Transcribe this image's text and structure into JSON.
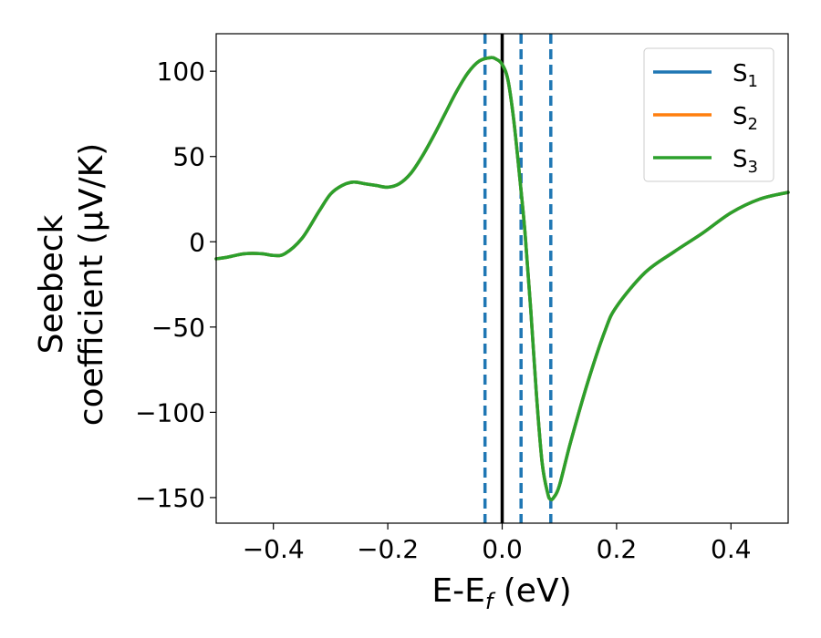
{
  "chart_data": {
    "type": "line",
    "xlabel": "E-E",
    "xlabel_sub": "f",
    "xlabel_unit": " (eV)",
    "ylabel_line1": "Seebeck",
    "ylabel_line2": "coefficient  (μV/K)",
    "xlim": [
      -0.5,
      0.5
    ],
    "ylim": [
      -165,
      122
    ],
    "x_ticks": [
      -0.4,
      -0.2,
      0.0,
      0.2,
      0.4
    ],
    "x_tick_labels": [
      "−0.4",
      "−0.2",
      "0.0",
      "0.2",
      "0.4"
    ],
    "y_ticks": [
      100,
      50,
      0,
      -50,
      -100,
      -150
    ],
    "y_tick_labels": [
      "100",
      "50",
      "0",
      "−50",
      "−100",
      "−150"
    ],
    "grid": false,
    "legend_position": "top-right",
    "x": [
      -0.5,
      -0.48,
      -0.45,
      -0.42,
      -0.4,
      -0.38,
      -0.35,
      -0.32,
      -0.3,
      -0.28,
      -0.26,
      -0.24,
      -0.22,
      -0.2,
      -0.18,
      -0.16,
      -0.14,
      -0.12,
      -0.1,
      -0.08,
      -0.06,
      -0.04,
      -0.02,
      -0.01,
      0.0,
      0.01,
      0.02,
      0.03,
      0.04,
      0.05,
      0.06,
      0.07,
      0.08,
      0.085,
      0.09,
      0.1,
      0.12,
      0.15,
      0.18,
      0.2,
      0.25,
      0.3,
      0.35,
      0.4,
      0.45,
      0.5
    ],
    "series": [
      {
        "name": "S",
        "sub": "1",
        "color": "#1f77b4",
        "values": [
          -10,
          -9,
          -7,
          -7,
          -8,
          -7,
          2,
          18,
          28,
          33,
          35,
          34,
          33,
          32,
          34,
          40,
          50,
          62,
          75,
          88,
          99,
          106,
          108,
          107,
          104,
          95,
          72,
          40,
          5,
          -40,
          -90,
          -130,
          -148,
          -151,
          -150,
          -143,
          -117,
          -82,
          -52,
          -38,
          -18,
          -6,
          5,
          17,
          25,
          29
        ]
      },
      {
        "name": "S",
        "sub": "2",
        "color": "#ff7f0e",
        "values": [
          -10,
          -9,
          -7,
          -7,
          -8,
          -7,
          2,
          18,
          28,
          33,
          35,
          34,
          33,
          32,
          34,
          40,
          50,
          62,
          75,
          88,
          99,
          106,
          108,
          107,
          104,
          95,
          72,
          40,
          5,
          -40,
          -90,
          -130,
          -148,
          -151,
          -150,
          -143,
          -117,
          -82,
          -52,
          -38,
          -18,
          -6,
          5,
          17,
          25,
          29
        ]
      },
      {
        "name": "S",
        "sub": "3",
        "color": "#2ca02c",
        "values": [
          -10,
          -9,
          -7,
          -7,
          -8,
          -7,
          2,
          18,
          28,
          33,
          35,
          34,
          33,
          32,
          34,
          40,
          50,
          62,
          75,
          88,
          99,
          106,
          108,
          107,
          104,
          95,
          72,
          40,
          5,
          -40,
          -90,
          -130,
          -148,
          -151,
          -150,
          -143,
          -117,
          -82,
          -52,
          -38,
          -18,
          -6,
          5,
          17,
          25,
          29
        ]
      }
    ],
    "vlines_dashed": {
      "color": "#1f77b4",
      "x": [
        -0.03,
        0.033,
        0.085
      ]
    },
    "vline_solid": {
      "color": "#000000",
      "x": 0.0
    }
  }
}
